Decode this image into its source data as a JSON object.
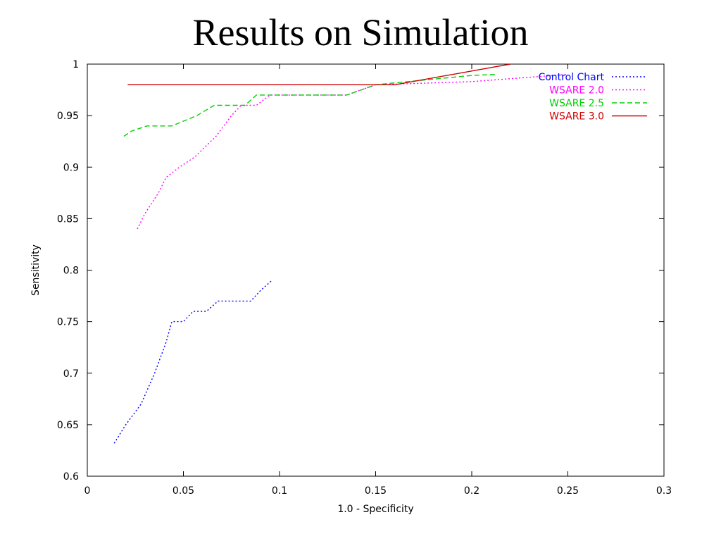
{
  "slide": {
    "title": "Results on Simulation"
  },
  "chart_data": {
    "type": "line",
    "title": "",
    "xlabel": "1.0 - Specificity",
    "ylabel": "Sensitivity",
    "xlim": [
      0,
      0.3
    ],
    "ylim": [
      0.6,
      1
    ],
    "xticks": [
      0,
      0.05,
      0.1,
      0.15,
      0.2,
      0.25,
      0.3
    ],
    "xtick_labels": [
      "0",
      "0.05",
      "0.1",
      "0.15",
      "0.2",
      "0.25",
      "0.3"
    ],
    "yticks": [
      0.6,
      0.65,
      0.7,
      0.75,
      0.8,
      0.85,
      0.9,
      0.95,
      1
    ],
    "ytick_labels": [
      "0.6",
      "0.65",
      "0.7",
      "0.75",
      "0.8",
      "0.85",
      "0.9",
      "0.95",
      "1"
    ],
    "grid": false,
    "legend_position": "top-right",
    "series": [
      {
        "name": "Control Chart",
        "color": "#0000ff",
        "dash": "dotted",
        "points": [
          [
            0.014,
            0.632
          ],
          [
            0.02,
            0.65
          ],
          [
            0.028,
            0.67
          ],
          [
            0.035,
            0.7
          ],
          [
            0.041,
            0.73
          ],
          [
            0.044,
            0.75
          ],
          [
            0.05,
            0.75
          ],
          [
            0.055,
            0.76
          ],
          [
            0.062,
            0.76
          ],
          [
            0.068,
            0.77
          ],
          [
            0.08,
            0.77
          ],
          [
            0.085,
            0.77
          ],
          [
            0.09,
            0.78
          ],
          [
            0.096,
            0.79
          ]
        ]
      },
      {
        "name": "WSARE 2.0",
        "color": "#ff00ff",
        "dash": "dotted",
        "points": [
          [
            0.026,
            0.84
          ],
          [
            0.03,
            0.855
          ],
          [
            0.037,
            0.875
          ],
          [
            0.041,
            0.89
          ],
          [
            0.048,
            0.9
          ],
          [
            0.056,
            0.91
          ],
          [
            0.067,
            0.93
          ],
          [
            0.075,
            0.95
          ],
          [
            0.08,
            0.96
          ],
          [
            0.088,
            0.96
          ],
          [
            0.095,
            0.97
          ],
          [
            0.135,
            0.97
          ],
          [
            0.15,
            0.98
          ],
          [
            0.2,
            0.983
          ],
          [
            0.25,
            0.99
          ]
        ]
      },
      {
        "name": "WSARE 2.5",
        "color": "#00d000",
        "dash": "dashed",
        "points": [
          [
            0.019,
            0.93
          ],
          [
            0.023,
            0.935
          ],
          [
            0.031,
            0.94
          ],
          [
            0.044,
            0.94
          ],
          [
            0.057,
            0.95
          ],
          [
            0.066,
            0.96
          ],
          [
            0.082,
            0.96
          ],
          [
            0.088,
            0.97
          ],
          [
            0.135,
            0.97
          ],
          [
            0.15,
            0.98
          ],
          [
            0.2,
            0.989
          ],
          [
            0.213,
            0.99
          ]
        ]
      },
      {
        "name": "WSARE 3.0",
        "color": "#d00000",
        "dash": "solid",
        "points": [
          [
            0.021,
            0.98
          ],
          [
            0.16,
            0.98
          ],
          [
            0.22,
            1.0
          ]
        ]
      }
    ]
  }
}
